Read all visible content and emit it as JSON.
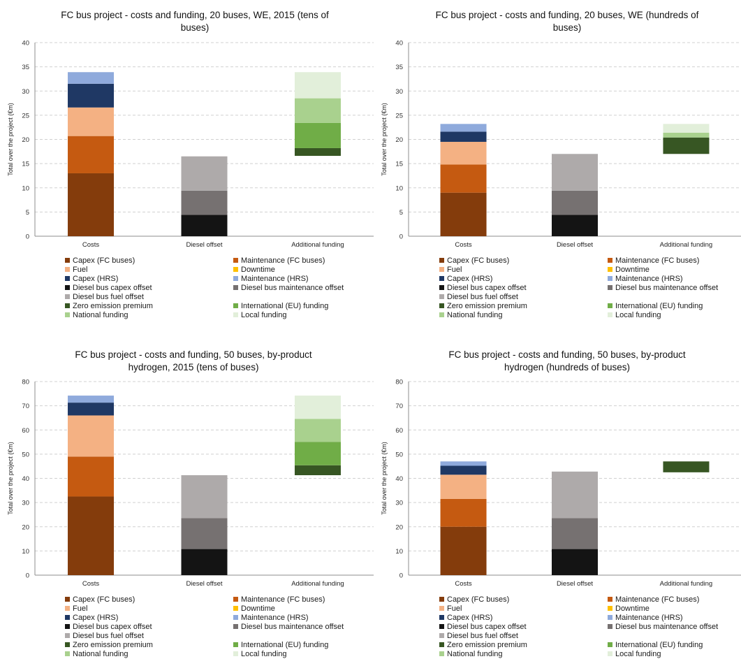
{
  "charts": [
    {
      "title_lines": [
        "FC bus project - costs and funding, 20 buses, WE, 2015 (tens of",
        "buses)"
      ],
      "ylabel": "Total over the project (€m)",
      "ylim": [
        0,
        40
      ],
      "yticks": [
        "0",
        "5",
        "10",
        "15",
        "20",
        "25",
        "30",
        "35",
        "40"
      ],
      "categories": [
        "Costs",
        "Diesel offset",
        "Additional funding"
      ]
    },
    {
      "title_lines": [
        "FC bus project - costs and funding, 20 buses, WE (hundreds of",
        "buses)"
      ],
      "ylabel": "Total over the project (€m)",
      "ylim": [
        0,
        40
      ],
      "yticks": [
        "0",
        "5",
        "10",
        "15",
        "20",
        "25",
        "30",
        "35",
        "40"
      ],
      "categories": [
        "Costs",
        "Diesel offset",
        "Additional funding"
      ]
    },
    {
      "title_lines": [
        "FC bus project - costs and funding, 50 buses, by-product",
        "hydrogen, 2015 (tens of buses)"
      ],
      "ylabel": "Total over the project (€m)",
      "ylim": [
        0,
        80
      ],
      "yticks": [
        "0",
        "10",
        "20",
        "30",
        "40",
        "50",
        "60",
        "70",
        "80"
      ],
      "categories": [
        "Costs",
        "Diesel offset",
        "Additional funding"
      ]
    },
    {
      "title_lines": [
        "FC bus project - costs and funding, 50 buses, by-product",
        "hydrogen (hundreds of buses)"
      ],
      "ylabel": "Total over the project (€m)",
      "ylim": [
        0,
        80
      ],
      "yticks": [
        "0",
        "10",
        "20",
        "30",
        "40",
        "50",
        "60",
        "70",
        "80"
      ],
      "categories": [
        "Costs",
        "Diesel offset",
        "Additional funding"
      ]
    }
  ],
  "legend": [
    {
      "label": "Capex (FC buses)",
      "color": "#843c0c"
    },
    {
      "label": "Maintenance (FC buses)",
      "color": "#c55a11"
    },
    {
      "label": "Fuel",
      "color": "#f4b183"
    },
    {
      "label": "Downtime",
      "color": "#ffc000"
    },
    {
      "label": "Capex (HRS)",
      "color": "#1f3864"
    },
    {
      "label": "Maintenance (HRS)",
      "color": "#8faadc"
    },
    {
      "label": "Diesel bus capex offset",
      "color": "#141414"
    },
    {
      "label": "Diesel bus maintenance offset",
      "color": "#767171"
    },
    {
      "label": "Diesel bus fuel offset",
      "color": "#aeaaaa"
    },
    {
      "label": "Zero emission premium",
      "color": "#375623"
    },
    {
      "label": "International (EU) funding",
      "color": "#70ad47"
    },
    {
      "label": "National funding",
      "color": "#a9d18e"
    },
    {
      "label": "Local funding",
      "color": "#e2efda"
    }
  ],
  "chart_data": [
    {
      "type": "bar",
      "stacked": true,
      "categories": [
        "Costs",
        "Diesel offset",
        "Additional funding"
      ],
      "ylim": [
        0,
        40
      ],
      "grid": true,
      "stacks": [
        [
          {
            "series": "Capex (FC buses)",
            "from": 0,
            "to": 13
          },
          {
            "series": "Maintenance (FC buses)",
            "from": 13,
            "to": 20.7
          },
          {
            "series": "Fuel",
            "from": 20.7,
            "to": 26.6
          },
          {
            "series": "Capex (HRS)",
            "from": 26.6,
            "to": 31.5
          },
          {
            "series": "Maintenance (HRS)",
            "from": 31.5,
            "to": 33.9
          }
        ],
        [
          {
            "series": "Diesel bus capex offset",
            "from": 0,
            "to": 4.4
          },
          {
            "series": "Diesel bus maintenance offset",
            "from": 4.4,
            "to": 9.4
          },
          {
            "series": "Diesel bus fuel offset",
            "from": 9.4,
            "to": 16.5
          }
        ],
        [
          {
            "series": "Zero emission premium",
            "from": 16.6,
            "to": 18.2
          },
          {
            "series": "International (EU) funding",
            "from": 18.2,
            "to": 23.4
          },
          {
            "series": "National funding",
            "from": 23.4,
            "to": 28.5
          },
          {
            "series": "Local funding",
            "from": 28.5,
            "to": 33.9
          }
        ]
      ]
    },
    {
      "type": "bar",
      "stacked": true,
      "categories": [
        "Costs",
        "Diesel offset",
        "Additional funding"
      ],
      "ylim": [
        0,
        40
      ],
      "grid": true,
      "stacks": [
        [
          {
            "series": "Capex (FC buses)",
            "from": 0,
            "to": 9
          },
          {
            "series": "Maintenance (FC buses)",
            "from": 9,
            "to": 14.8
          },
          {
            "series": "Fuel",
            "from": 14.8,
            "to": 19.5
          },
          {
            "series": "Capex (HRS)",
            "from": 19.5,
            "to": 21.6
          },
          {
            "series": "Maintenance (HRS)",
            "from": 21.6,
            "to": 23.2
          }
        ],
        [
          {
            "series": "Diesel bus capex offset",
            "from": 0,
            "to": 4.4
          },
          {
            "series": "Diesel bus maintenance offset",
            "from": 4.4,
            "to": 9.4
          },
          {
            "series": "Diesel bus fuel offset",
            "from": 9.4,
            "to": 17
          }
        ],
        [
          {
            "series": "Zero emission premium",
            "from": 17,
            "to": 20.4
          },
          {
            "series": "National funding",
            "from": 20.4,
            "to": 21.4
          },
          {
            "series": "Local funding",
            "from": 21.4,
            "to": 23.2
          }
        ]
      ]
    },
    {
      "type": "bar",
      "stacked": true,
      "categories": [
        "Costs",
        "Diesel offset",
        "Additional funding"
      ],
      "ylim": [
        0,
        80
      ],
      "grid": true,
      "stacks": [
        [
          {
            "series": "Capex (FC buses)",
            "from": 0,
            "to": 32.5
          },
          {
            "series": "Maintenance (FC buses)",
            "from": 32.5,
            "to": 49
          },
          {
            "series": "Fuel",
            "from": 49,
            "to": 66
          },
          {
            "series": "Capex (HRS)",
            "from": 66,
            "to": 71.3
          },
          {
            "series": "Maintenance (HRS)",
            "from": 71.3,
            "to": 74.2
          }
        ],
        [
          {
            "series": "Diesel bus capex offset",
            "from": 0,
            "to": 10.8
          },
          {
            "series": "Diesel bus maintenance offset",
            "from": 10.8,
            "to": 23.6
          },
          {
            "series": "Diesel bus fuel offset",
            "from": 23.6,
            "to": 41.3
          }
        ],
        [
          {
            "series": "Zero emission premium",
            "from": 41.3,
            "to": 45.4
          },
          {
            "series": "International (EU) funding",
            "from": 45.4,
            "to": 55.1
          },
          {
            "series": "National funding",
            "from": 55.1,
            "to": 64.6
          },
          {
            "series": "Local funding",
            "from": 64.6,
            "to": 74.2
          }
        ]
      ]
    },
    {
      "type": "bar",
      "stacked": true,
      "categories": [
        "Costs",
        "Diesel offset",
        "Additional funding"
      ],
      "ylim": [
        0,
        80
      ],
      "grid": true,
      "stacks": [
        [
          {
            "series": "Capex (FC buses)",
            "from": 0,
            "to": 20
          },
          {
            "series": "Maintenance (FC buses)",
            "from": 20,
            "to": 31.5
          },
          {
            "series": "Fuel",
            "from": 31.5,
            "to": 41.5
          },
          {
            "series": "Capex (HRS)",
            "from": 41.5,
            "to": 45.2
          },
          {
            "series": "Maintenance (HRS)",
            "from": 45.2,
            "to": 47
          }
        ],
        [
          {
            "series": "Diesel bus capex offset",
            "from": 0,
            "to": 10.8
          },
          {
            "series": "Diesel bus maintenance offset",
            "from": 10.8,
            "to": 23.6
          },
          {
            "series": "Diesel bus fuel offset",
            "from": 23.6,
            "to": 42.8
          }
        ],
        [
          {
            "series": "Zero emission premium",
            "from": 42.5,
            "to": 47
          }
        ]
      ]
    }
  ]
}
